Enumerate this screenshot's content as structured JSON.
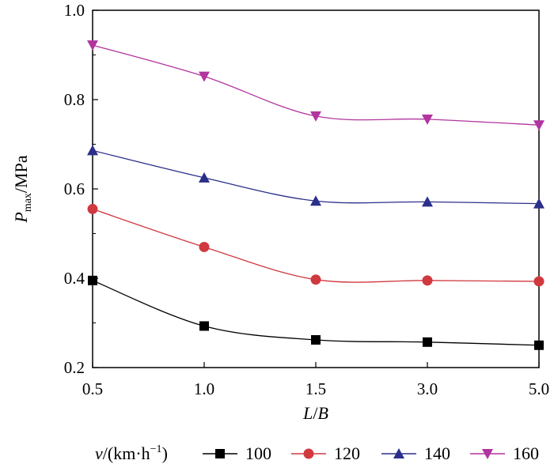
{
  "chart_data": {
    "type": "line",
    "title": "",
    "xlabel": {
      "left": "L",
      "slash": "/",
      "right": "B"
    },
    "ylabel": {
      "main": "P",
      "sub": "max",
      "unit": "/MPa"
    },
    "categories": [
      "0.5",
      "1.0",
      "1.5",
      "3.0",
      "5.0"
    ],
    "ylim": [
      0.2,
      1.0
    ],
    "yticks": [
      0.2,
      0.4,
      0.6,
      0.8,
      1.0
    ],
    "ytick_labels": [
      "0.2",
      "0.4",
      "0.6",
      "0.8",
      "1.0"
    ],
    "legend_title": {
      "var": "v",
      "unit": "/(km·h",
      "exp": "−1",
      "close": ")"
    },
    "legend_position": "bottom",
    "series": [
      {
        "name": "100",
        "values": [
          0.395,
          0.293,
          0.262,
          0.257,
          0.25
        ],
        "color": "#000000",
        "marker": "square"
      },
      {
        "name": "120",
        "values": [
          0.555,
          0.47,
          0.397,
          0.395,
          0.393
        ],
        "color": "#d0393f",
        "marker": "circle"
      },
      {
        "name": "140",
        "values": [
          0.686,
          0.625,
          0.573,
          0.571,
          0.567
        ],
        "color": "#2b2f8a",
        "marker": "triangle-up"
      },
      {
        "name": "160",
        "values": [
          0.922,
          0.852,
          0.763,
          0.756,
          0.743
        ],
        "color": "#b2349f",
        "marker": "triangle-down"
      }
    ]
  }
}
